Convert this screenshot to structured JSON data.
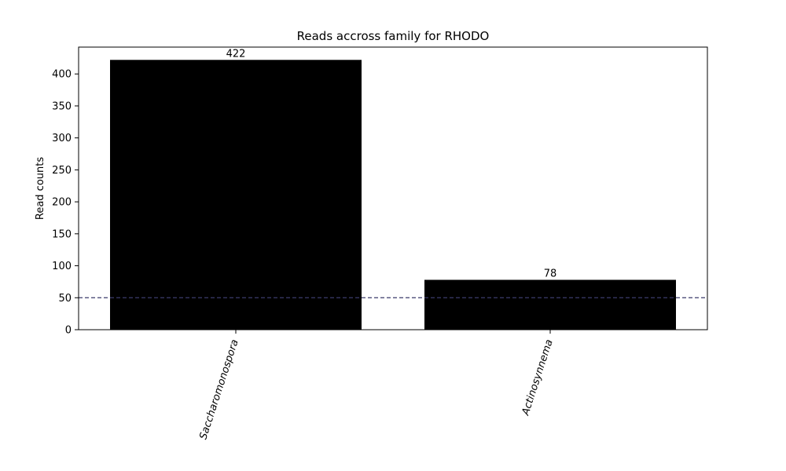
{
  "chart_data": {
    "type": "bar",
    "title": "Reads accross family for RHODO",
    "xlabel": "",
    "ylabel": "Read counts",
    "categories": [
      "Saccharomonospora",
      "Actinosynnema"
    ],
    "values": [
      422,
      78
    ],
    "data_labels": [
      "422",
      "78"
    ],
    "ylim": [
      0,
      442
    ],
    "yticks": [
      0,
      50,
      100,
      150,
      200,
      250,
      300,
      350,
      400
    ],
    "threshold_line": 50,
    "bar_color": "#000000",
    "threshold_color": "#3b3b6b",
    "grid": false,
    "legend": "none"
  }
}
